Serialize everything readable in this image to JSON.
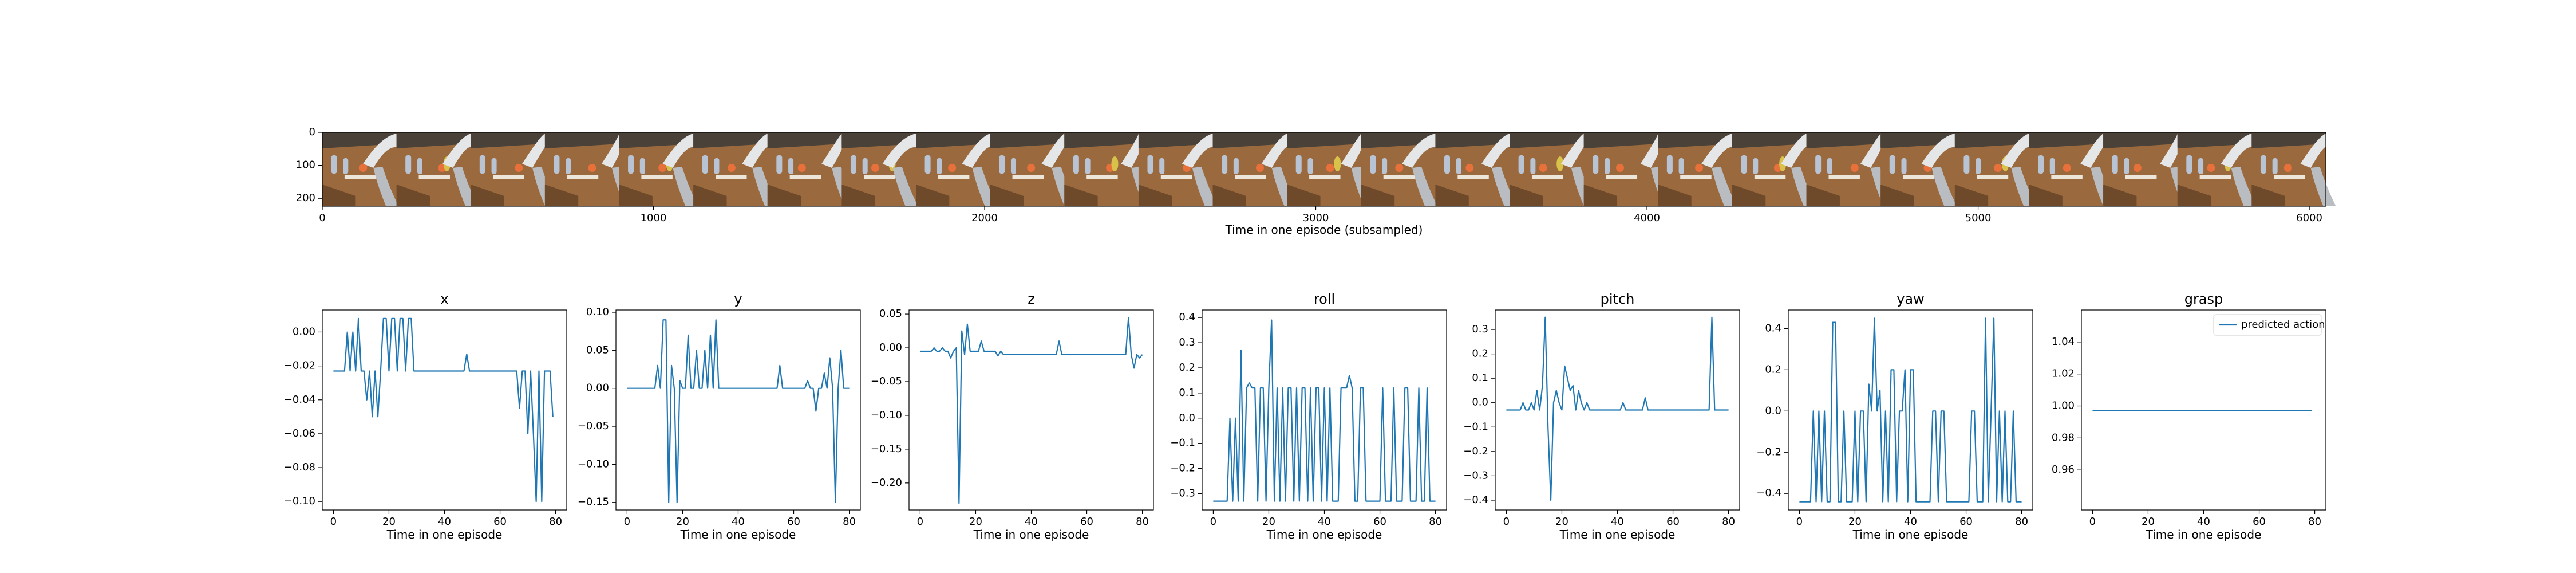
{
  "filmstrip": {
    "xlabel": "Time in one episode (subsampled)",
    "xlim": [
      0,
      6050
    ],
    "ylim": [
      224,
      0
    ],
    "xticks": [
      0,
      1000,
      2000,
      3000,
      4000,
      5000,
      6000
    ],
    "yticks": [
      0,
      100,
      200
    ],
    "frame_count": 27,
    "colors": {
      "sky": "#4a4238",
      "table": "#9a6a3e",
      "table_dark": "#6e4a2a",
      "arm": "#e4e6e8",
      "arm_shadow": "#b9bcc0",
      "bottle": "#b8c3d4",
      "orange": "#e8703a",
      "banana": "#d8c24a",
      "cloth": "#ece6da"
    }
  },
  "legend": {
    "label": "predicted action",
    "placement": "upper right"
  },
  "shared_xlabel": "Time in one episode",
  "line_color": "#1f77b4",
  "chart_data": [
    {
      "type": "line",
      "title": "x",
      "xlabel": "Time in one episode",
      "xlim": [
        -4,
        84
      ],
      "ylim": [
        -0.105,
        0.013
      ],
      "xticks": [
        0,
        20,
        40,
        60,
        80
      ],
      "yticks": [
        -0.1,
        -0.08,
        -0.06,
        -0.04,
        -0.02,
        0.0
      ],
      "ytick_labels": [
        "−0.10",
        "−0.08",
        "−0.06",
        "−0.04",
        "−0.02",
        "0.00"
      ],
      "values": [
        -0.023,
        -0.023,
        -0.023,
        -0.023,
        -0.023,
        0.0,
        -0.023,
        0.0,
        -0.023,
        0.008,
        -0.023,
        -0.023,
        -0.04,
        -0.023,
        -0.05,
        -0.023,
        -0.05,
        -0.023,
        0.008,
        0.008,
        -0.023,
        0.008,
        0.008,
        -0.023,
        0.008,
        0.008,
        -0.023,
        0.008,
        0.008,
        -0.023,
        -0.023,
        -0.023,
        -0.023,
        -0.023,
        -0.023,
        -0.023,
        -0.023,
        -0.023,
        -0.023,
        -0.023,
        -0.023,
        -0.023,
        -0.023,
        -0.023,
        -0.023,
        -0.023,
        -0.023,
        -0.023,
        -0.013,
        -0.023,
        -0.023,
        -0.023,
        -0.023,
        -0.023,
        -0.023,
        -0.023,
        -0.023,
        -0.023,
        -0.023,
        -0.023,
        -0.023,
        -0.023,
        -0.023,
        -0.023,
        -0.023,
        -0.023,
        -0.023,
        -0.045,
        -0.023,
        -0.023,
        -0.06,
        -0.023,
        -0.06,
        -0.1,
        -0.023,
        -0.1,
        -0.023,
        -0.023,
        -0.023,
        -0.05
      ]
    },
    {
      "type": "line",
      "title": "y",
      "xlabel": "Time in one episode",
      "xlim": [
        -4,
        84
      ],
      "ylim": [
        -0.16,
        0.103
      ],
      "xticks": [
        0,
        20,
        40,
        60,
        80
      ],
      "yticks": [
        -0.15,
        -0.1,
        -0.05,
        0.0,
        0.05,
        0.1
      ],
      "ytick_labels": [
        "−0.15",
        "−0.10",
        "−0.05",
        "0.00",
        "0.05",
        "0.10"
      ],
      "values": [
        0.0,
        0.0,
        0.0,
        0.0,
        0.0,
        0.0,
        0.0,
        0.0,
        0.0,
        0.0,
        0.0,
        0.03,
        0.0,
        0.09,
        0.09,
        -0.15,
        0.03,
        0.0,
        -0.15,
        0.01,
        0.0,
        0.0,
        0.07,
        0.0,
        0.0,
        0.05,
        0.0,
        0.0,
        0.05,
        0.0,
        0.07,
        0.0,
        0.09,
        0.0,
        0.0,
        0.0,
        0.0,
        0.0,
        0.0,
        0.0,
        0.0,
        0.0,
        0.0,
        0.0,
        0.0,
        0.0,
        0.0,
        0.0,
        0.0,
        0.0,
        0.0,
        0.0,
        0.0,
        0.0,
        0.0,
        0.03,
        0.0,
        0.0,
        0.0,
        0.0,
        0.0,
        0.0,
        0.0,
        0.0,
        0.0,
        0.01,
        0.0,
        0.0,
        -0.03,
        0.0,
        0.0,
        0.02,
        0.0,
        0.04,
        0.0,
        -0.15,
        0.0,
        0.05,
        0.0,
        0.0,
        0.0
      ]
    },
    {
      "type": "line",
      "title": "z",
      "xlabel": "Time in one episode",
      "xlim": [
        -4,
        84
      ],
      "ylim": [
        -0.24,
        0.056
      ],
      "xticks": [
        0,
        20,
        40,
        60,
        80
      ],
      "yticks": [
        -0.2,
        -0.15,
        -0.1,
        -0.05,
        0.0,
        0.05
      ],
      "ytick_labels": [
        "−0.20",
        "−0.15",
        "−0.10",
        "−0.05",
        "0.00",
        "0.05"
      ],
      "values": [
        -0.005,
        -0.005,
        -0.005,
        -0.005,
        -0.005,
        0.0,
        -0.005,
        -0.005,
        0.0,
        -0.005,
        -0.005,
        -0.015,
        -0.005,
        0.0,
        -0.23,
        0.025,
        -0.01,
        0.035,
        -0.005,
        -0.005,
        -0.005,
        -0.005,
        0.01,
        -0.005,
        -0.005,
        -0.005,
        -0.005,
        -0.005,
        -0.012,
        -0.005,
        -0.01,
        -0.01,
        -0.01,
        -0.01,
        -0.01,
        -0.01,
        -0.01,
        -0.01,
        -0.01,
        -0.01,
        -0.01,
        -0.01,
        -0.01,
        -0.01,
        -0.01,
        -0.01,
        -0.01,
        -0.01,
        -0.01,
        -0.01,
        0.01,
        -0.01,
        -0.01,
        -0.01,
        -0.01,
        -0.01,
        -0.01,
        -0.01,
        -0.01,
        -0.01,
        -0.01,
        -0.01,
        -0.01,
        -0.01,
        -0.01,
        -0.01,
        -0.01,
        -0.01,
        -0.01,
        -0.01,
        -0.01,
        -0.01,
        -0.01,
        -0.01,
        -0.01,
        0.045,
        -0.01,
        -0.03,
        -0.01,
        -0.015,
        -0.01
      ]
    },
    {
      "type": "line",
      "title": "roll",
      "xlabel": "Time in one episode",
      "xlim": [
        -4,
        84
      ],
      "ylim": [
        -0.365,
        0.43
      ],
      "xticks": [
        0,
        20,
        40,
        60,
        80
      ],
      "yticks": [
        -0.3,
        -0.2,
        -0.1,
        0.0,
        0.1,
        0.2,
        0.3,
        0.4
      ],
      "ytick_labels": [
        "−0.3",
        "−0.2",
        "−0.1",
        "0.0",
        "0.1",
        "0.2",
        "0.3",
        "0.4"
      ],
      "values": [
        -0.33,
        -0.33,
        -0.33,
        -0.33,
        -0.33,
        -0.33,
        0.0,
        -0.33,
        0.0,
        -0.33,
        0.27,
        -0.33,
        0.12,
        0.14,
        0.12,
        0.12,
        -0.33,
        0.12,
        0.12,
        -0.33,
        0.12,
        0.39,
        -0.33,
        0.12,
        -0.33,
        0.12,
        -0.33,
        0.12,
        0.12,
        -0.33,
        0.12,
        -0.33,
        0.12,
        0.12,
        -0.33,
        0.12,
        -0.33,
        0.12,
        0.12,
        -0.33,
        0.12,
        -0.33,
        0.12,
        -0.33,
        -0.33,
        -0.33,
        0.12,
        0.12,
        0.12,
        0.17,
        0.12,
        -0.33,
        -0.33,
        0.12,
        0.12,
        -0.33,
        -0.33,
        -0.33,
        -0.33,
        -0.33,
        -0.33,
        0.12,
        -0.33,
        -0.33,
        -0.33,
        0.12,
        -0.33,
        -0.33,
        -0.33,
        0.12,
        0.12,
        -0.33,
        -0.33,
        -0.33,
        0.12,
        -0.33,
        -0.33,
        0.12,
        -0.33,
        -0.33,
        -0.33
      ]
    },
    {
      "type": "line",
      "title": "pitch",
      "xlabel": "Time in one episode",
      "xlim": [
        -4,
        84
      ],
      "ylim": [
        -0.44,
        0.38
      ],
      "xticks": [
        0,
        20,
        40,
        60,
        80
      ],
      "yticks": [
        -0.4,
        -0.3,
        -0.2,
        -0.1,
        0.0,
        0.1,
        0.2,
        0.3
      ],
      "ytick_labels": [
        "−0.4",
        "−0.3",
        "−0.2",
        "−0.1",
        "0.0",
        "0.1",
        "0.2",
        "0.3"
      ],
      "values": [
        -0.03,
        -0.03,
        -0.03,
        -0.03,
        -0.03,
        -0.03,
        0.0,
        -0.03,
        -0.03,
        0.0,
        -0.03,
        0.05,
        -0.03,
        0.07,
        0.35,
        -0.1,
        -0.4,
        0.0,
        0.05,
        0.0,
        -0.03,
        0.15,
        0.1,
        0.05,
        0.07,
        -0.03,
        0.05,
        0.0,
        -0.03,
        0.0,
        -0.03,
        -0.03,
        -0.03,
        -0.03,
        -0.03,
        -0.03,
        -0.03,
        -0.03,
        -0.03,
        -0.03,
        -0.03,
        -0.03,
        0.0,
        -0.03,
        -0.03,
        -0.03,
        -0.03,
        -0.03,
        -0.03,
        -0.03,
        0.02,
        -0.03,
        -0.03,
        -0.03,
        -0.03,
        -0.03,
        -0.03,
        -0.03,
        -0.03,
        -0.03,
        -0.03,
        -0.03,
        -0.03,
        -0.03,
        -0.03,
        -0.03,
        -0.03,
        -0.03,
        -0.03,
        -0.03,
        -0.03,
        -0.03,
        -0.03,
        -0.03,
        0.35,
        -0.03,
        -0.03,
        -0.03,
        -0.03,
        -0.03,
        -0.03
      ]
    },
    {
      "type": "line",
      "title": "yaw",
      "xlabel": "Time in one episode",
      "xlim": [
        -4,
        84
      ],
      "ylim": [
        -0.48,
        0.49
      ],
      "xticks": [
        0,
        20,
        40,
        60,
        80
      ],
      "yticks": [
        -0.4,
        -0.2,
        0.0,
        0.2,
        0.4
      ],
      "ytick_labels": [
        "−0.4",
        "−0.2",
        "0.0",
        "0.2",
        "0.4"
      ],
      "values": [
        -0.44,
        -0.44,
        -0.44,
        -0.44,
        -0.44,
        0.0,
        -0.44,
        0.0,
        -0.44,
        0.0,
        -0.44,
        -0.44,
        0.43,
        0.43,
        -0.44,
        -0.44,
        0.0,
        -0.44,
        -0.44,
        -0.44,
        0.0,
        -0.44,
        0.0,
        0.0,
        -0.44,
        0.13,
        0.0,
        0.45,
        0.0,
        0.1,
        -0.44,
        0.0,
        -0.44,
        0.2,
        0.2,
        -0.44,
        0.0,
        0.0,
        0.2,
        -0.44,
        0.2,
        0.2,
        -0.44,
        -0.44,
        -0.44,
        -0.44,
        -0.44,
        -0.44,
        0.0,
        0.0,
        -0.44,
        0.0,
        0.0,
        -0.44,
        -0.44,
        -0.44,
        -0.44,
        -0.44,
        -0.44,
        -0.44,
        -0.44,
        -0.44,
        0.0,
        0.0,
        -0.44,
        -0.44,
        -0.44,
        0.45,
        -0.44,
        0.0,
        0.45,
        -0.44,
        0.0,
        -0.44,
        0.0,
        -0.44,
        -0.44,
        0.0,
        -0.44,
        -0.44,
        -0.44
      ]
    },
    {
      "type": "line",
      "title": "grasp",
      "xlabel": "Time in one episode",
      "xlim": [
        -4,
        84
      ],
      "ylim": [
        0.935,
        1.06
      ],
      "xticks": [
        0,
        20,
        40,
        60,
        80
      ],
      "yticks": [
        0.96,
        0.98,
        1.0,
        1.02,
        1.04
      ],
      "ytick_labels": [
        "0.96",
        "0.98",
        "1.00",
        "1.02",
        "1.04"
      ],
      "series": [
        {
          "name": "predicted action",
          "values": [
            0.997,
            0.997,
            0.997,
            0.997,
            0.997,
            0.997,
            0.997,
            0.997,
            0.997,
            0.997,
            0.997,
            0.997,
            0.997,
            0.997,
            0.997,
            0.997,
            0.997,
            0.997,
            0.997,
            0.997,
            0.997,
            0.997,
            0.997,
            0.997,
            0.997,
            0.997,
            0.997,
            0.997,
            0.997,
            0.997,
            0.997,
            0.997,
            0.997,
            0.997,
            0.997,
            0.997,
            0.997,
            0.997,
            0.997,
            0.997,
            0.997,
            0.997,
            0.997,
            0.997,
            0.997,
            0.997,
            0.997,
            0.997,
            0.997,
            0.997,
            0.997,
            0.997,
            0.997,
            0.997,
            0.997,
            0.997,
            0.997,
            0.997,
            0.997,
            0.997,
            0.997,
            0.997,
            0.997,
            0.997,
            0.997,
            0.997,
            0.997,
            0.997,
            0.997,
            0.997,
            0.997,
            0.997,
            0.997,
            0.997,
            0.997,
            0.997,
            0.997,
            0.997,
            0.997,
            0.997
          ]
        }
      ]
    }
  ]
}
